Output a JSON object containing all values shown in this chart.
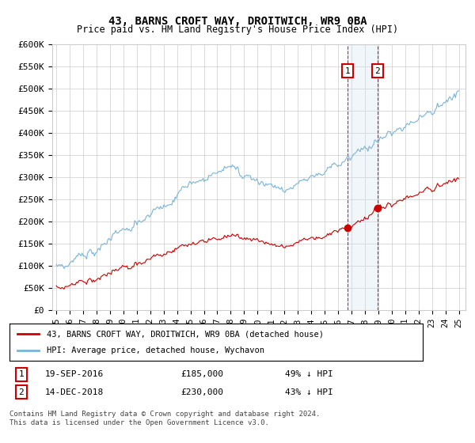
{
  "title": "43, BARNS CROFT WAY, DROITWICH, WR9 0BA",
  "subtitle": "Price paid vs. HM Land Registry's House Price Index (HPI)",
  "ylim": [
    0,
    600000
  ],
  "yticks": [
    0,
    50000,
    100000,
    150000,
    200000,
    250000,
    300000,
    350000,
    400000,
    450000,
    500000,
    550000,
    600000
  ],
  "ytick_labels": [
    "£0",
    "£50K",
    "£100K",
    "£150K",
    "£200K",
    "£250K",
    "£300K",
    "£350K",
    "£400K",
    "£450K",
    "£500K",
    "£550K",
    "£600K"
  ],
  "transaction1_year": 2016.72,
  "transaction1_price": 185000,
  "transaction1_pct": "49%",
  "transaction1_label": "19-SEP-2016",
  "transaction2_year": 2018.95,
  "transaction2_price": 230000,
  "transaction2_pct": "43%",
  "transaction2_label": "14-DEC-2018",
  "hpi_color": "#7ab4d8",
  "price_color": "#cc0000",
  "marker_box_color": "#cc0000",
  "shading_color": "#c8dff0",
  "legend_label_price": "43, BARNS CROFT WAY, DROITWICH, WR9 0BA (detached house)",
  "legend_label_hpi": "HPI: Average price, detached house, Wychavon",
  "footer": "Contains HM Land Registry data © Crown copyright and database right 2024.\nThis data is licensed under the Open Government Licence v3.0.",
  "background_color": "#ffffff",
  "grid_color": "#cccccc"
}
